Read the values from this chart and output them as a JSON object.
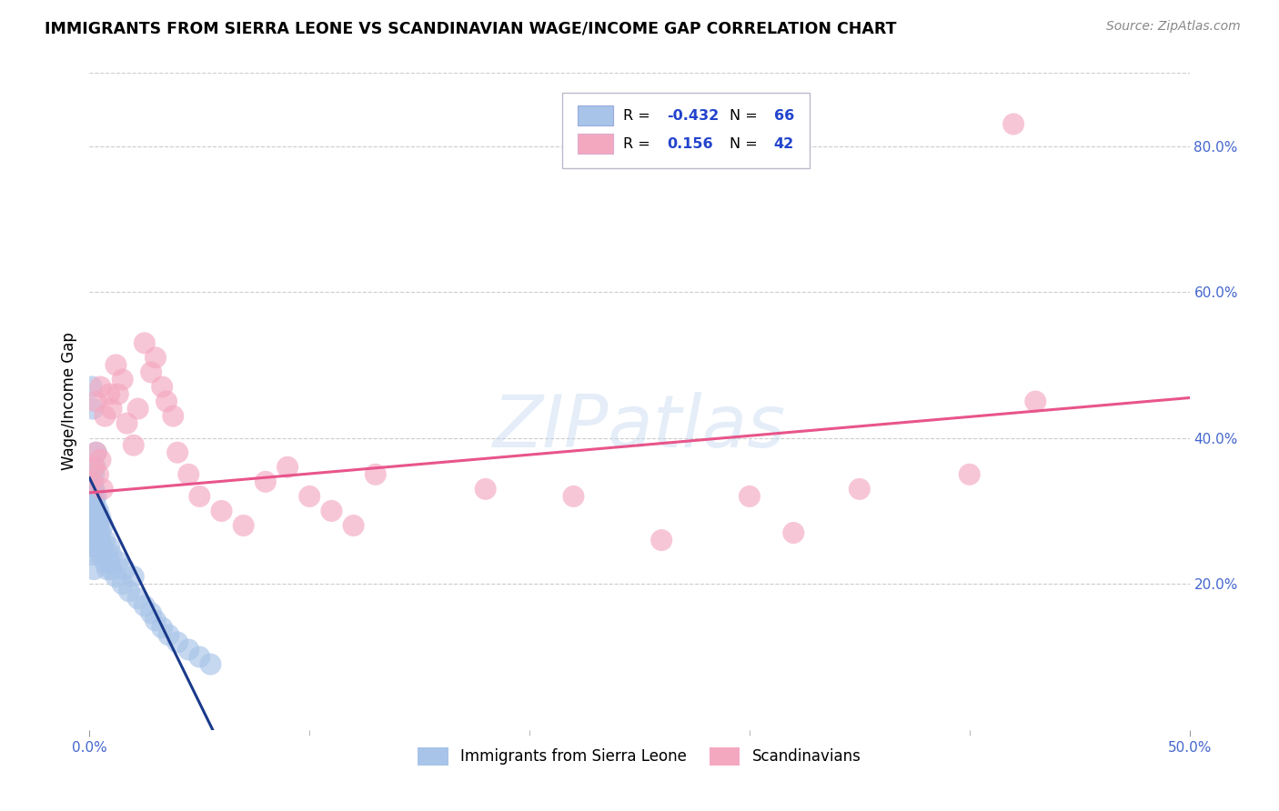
{
  "title": "IMMIGRANTS FROM SIERRA LEONE VS SCANDINAVIAN WAGE/INCOME GAP CORRELATION CHART",
  "source": "Source: ZipAtlas.com",
  "ylabel": "Wage/Income Gap",
  "xlim": [
    0.0,
    0.5
  ],
  "ylim": [
    0.0,
    0.9
  ],
  "xticks_labeled": [
    0.0,
    0.5
  ],
  "xtick_labels": [
    "0.0%",
    "50.0%"
  ],
  "xticks_minor": [
    0.1,
    0.2,
    0.3,
    0.4
  ],
  "yticks_right": [
    0.2,
    0.4,
    0.6,
    0.8
  ],
  "ytick_labels_right": [
    "20.0%",
    "40.0%",
    "60.0%",
    "80.0%"
  ],
  "legend_labels": [
    "Immigrants from Sierra Leone",
    "Scandinavians"
  ],
  "legend_R": [
    "-0.432",
    "0.156"
  ],
  "legend_N": [
    "66",
    "42"
  ],
  "blue_color": "#a8c4e8",
  "pink_color": "#f4a8c0",
  "blue_line_color": "#1a3a8a",
  "pink_line_color": "#e8558a",
  "watermark": "ZIPatlas",
  "blue_scatter_x": [
    0.001,
    0.001,
    0.001,
    0.001,
    0.001,
    0.0015,
    0.0015,
    0.0015,
    0.0015,
    0.002,
    0.002,
    0.002,
    0.002,
    0.002,
    0.002,
    0.0025,
    0.0025,
    0.0025,
    0.003,
    0.003,
    0.003,
    0.003,
    0.004,
    0.004,
    0.004,
    0.005,
    0.005,
    0.005,
    0.006,
    0.006,
    0.007,
    0.007,
    0.008,
    0.008,
    0.009,
    0.009,
    0.01,
    0.01,
    0.012,
    0.013,
    0.015,
    0.016,
    0.018,
    0.02,
    0.022,
    0.025,
    0.028,
    0.03,
    0.033,
    0.036,
    0.04,
    0.045,
    0.05,
    0.055,
    0.001,
    0.0015,
    0.002,
    0.0025,
    0.003,
    0.001,
    0.002,
    0.003,
    0.004,
    0.005,
    0.001,
    0.002
  ],
  "blue_scatter_y": [
    0.3,
    0.32,
    0.28,
    0.27,
    0.33,
    0.29,
    0.31,
    0.26,
    0.34,
    0.28,
    0.3,
    0.27,
    0.32,
    0.25,
    0.33,
    0.26,
    0.29,
    0.31,
    0.27,
    0.29,
    0.25,
    0.32,
    0.26,
    0.28,
    0.3,
    0.24,
    0.27,
    0.29,
    0.25,
    0.28,
    0.23,
    0.26,
    0.24,
    0.22,
    0.23,
    0.25,
    0.22,
    0.24,
    0.21,
    0.23,
    0.2,
    0.22,
    0.19,
    0.21,
    0.18,
    0.17,
    0.16,
    0.15,
    0.14,
    0.13,
    0.12,
    0.11,
    0.1,
    0.09,
    0.47,
    0.44,
    0.35,
    0.36,
    0.38,
    0.31,
    0.33,
    0.3,
    0.28,
    0.26,
    0.24,
    0.22
  ],
  "pink_scatter_x": [
    0.001,
    0.002,
    0.003,
    0.004,
    0.005,
    0.006,
    0.003,
    0.005,
    0.007,
    0.009,
    0.01,
    0.012,
    0.013,
    0.015,
    0.017,
    0.02,
    0.022,
    0.025,
    0.028,
    0.03,
    0.033,
    0.035,
    0.038,
    0.04,
    0.045,
    0.05,
    0.06,
    0.07,
    0.08,
    0.09,
    0.1,
    0.11,
    0.12,
    0.13,
    0.18,
    0.22,
    0.3,
    0.35,
    0.4,
    0.43,
    0.26,
    0.32
  ],
  "pink_scatter_y": [
    0.34,
    0.36,
    0.38,
    0.35,
    0.37,
    0.33,
    0.45,
    0.47,
    0.43,
    0.46,
    0.44,
    0.5,
    0.46,
    0.48,
    0.42,
    0.39,
    0.44,
    0.53,
    0.49,
    0.51,
    0.47,
    0.45,
    0.43,
    0.38,
    0.35,
    0.32,
    0.3,
    0.28,
    0.34,
    0.36,
    0.32,
    0.3,
    0.28,
    0.35,
    0.33,
    0.32,
    0.32,
    0.33,
    0.35,
    0.45,
    0.26,
    0.27
  ],
  "pink_outlier_x": [
    0.42
  ],
  "pink_outlier_y": [
    0.83
  ],
  "blue_trendline_x": [
    0.0,
    0.056
  ],
  "blue_trendline_y": [
    0.345,
    0.0
  ],
  "pink_trendline_x": [
    0.0,
    0.5
  ],
  "pink_trendline_y": [
    0.325,
    0.455
  ]
}
